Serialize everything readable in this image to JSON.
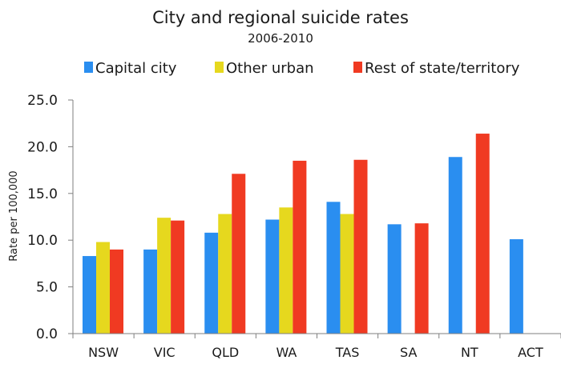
{
  "chart_data": {
    "type": "bar",
    "title": "City and regional suicide rates",
    "subtitle": "2006-2010",
    "xlabel": "",
    "ylabel": "Rate per 100,000",
    "ylim": [
      0,
      25
    ],
    "yticks": [
      "0.0",
      "5.0",
      "10.0",
      "15.0",
      "20.0",
      "25.0"
    ],
    "grid": false,
    "legend_position": "top",
    "categories": [
      "NSW",
      "VIC",
      "QLD",
      "WA",
      "TAS",
      "SA",
      "NT",
      "ACT"
    ],
    "series": [
      {
        "name": "Capital city",
        "color": "#2a8ef0",
        "values": [
          8.3,
          9.0,
          10.8,
          12.2,
          14.1,
          11.7,
          18.9,
          10.1
        ]
      },
      {
        "name": "Other urban",
        "color": "#e6d81e",
        "values": [
          9.8,
          12.4,
          12.8,
          13.5,
          12.8,
          null,
          null,
          null
        ]
      },
      {
        "name": "Rest of state/territory",
        "color": "#f03a22",
        "values": [
          9.0,
          12.1,
          17.1,
          18.5,
          18.6,
          11.8,
          21.4,
          null
        ]
      }
    ]
  }
}
